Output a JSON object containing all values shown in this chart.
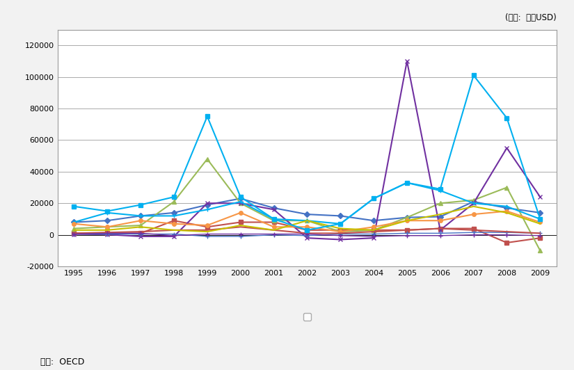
{
  "years": [
    1995,
    1996,
    1997,
    1998,
    1999,
    2000,
    2001,
    2002,
    2003,
    2004,
    2005,
    2006,
    2007,
    2008,
    2009
  ],
  "series": {
    "_FRA": {
      "values": [
        8000,
        9000,
        12000,
        14000,
        19000,
        23000,
        17000,
        13000,
        12000,
        9000,
        11000,
        11500,
        21000,
        17000,
        14000
      ],
      "color": "#4472C4",
      "marker": "D",
      "markersize": 4,
      "linewidth": 1.5,
      "linestyle": "-"
    },
    "_FIN": {
      "values": [
        1000,
        1000,
        1000,
        9000,
        5000,
        8000,
        8000,
        3000,
        3000,
        3000,
        3000,
        4000,
        4000,
        -5000,
        -2000
      ],
      "color": "#C0504D",
      "marker": "s",
      "markersize": 4,
      "linewidth": 1.5,
      "linestyle": "-"
    },
    "_GER": {
      "values": [
        4000,
        5000,
        6000,
        21000,
        48000,
        20000,
        9000,
        9000,
        2000,
        3000,
        11000,
        20000,
        22000,
        30000,
        -10000
      ],
      "color": "#9BBB59",
      "marker": "^",
      "markersize": 4,
      "linewidth": 1.5,
      "linestyle": "-"
    },
    "_NED": {
      "values": [
        500,
        200,
        -1000,
        -1000,
        20000,
        20000,
        16000,
        -2000,
        -3000,
        -2000,
        110000,
        3000,
        20000,
        55000,
        24000
      ],
      "color": "#7030A0",
      "marker": "x",
      "markersize": 5,
      "linewidth": 1.5,
      "linestyle": "-"
    },
    "_SPA": {
      "values": [
        8000,
        14000,
        12000,
        12000,
        16000,
        21000,
        10000,
        9000,
        7000,
        23000,
        33000,
        28000,
        20000,
        18000,
        10000
      ],
      "color": "#00B0F0",
      "marker": "+",
      "markersize": 5,
      "linewidth": 1.5,
      "linestyle": "-"
    },
    "_SWE": {
      "values": [
        7000,
        5000,
        9000,
        7000,
        6000,
        14000,
        5000,
        5000,
        2000,
        5000,
        9000,
        9000,
        13000,
        15000,
        8000
      ],
      "color": "#F79646",
      "marker": "o",
      "markersize": 4,
      "linewidth": 1.5,
      "linestyle": "-"
    },
    "_AUS": {
      "values": [
        500,
        500,
        500,
        500,
        -1000,
        -1000,
        0,
        -500,
        500,
        500,
        1000,
        1000,
        1500,
        1500,
        1000
      ],
      "color": "#4472C4",
      "marker": "+",
      "markersize": 5,
      "linewidth": 1.0,
      "linestyle": "-"
    },
    "_DEN": {
      "values": [
        1000,
        1500,
        2000,
        3000,
        3000,
        5000,
        3000,
        1000,
        1000,
        2000,
        3000,
        4000,
        3000,
        2000,
        1000
      ],
      "color": "#C0504D",
      "marker": "None",
      "markersize": 0,
      "linewidth": 1.5,
      "linestyle": "-"
    },
    "_ITA": {
      "values": [
        3000,
        3000,
        5000,
        3000,
        2000,
        6000,
        3000,
        9000,
        4000,
        3000,
        9000,
        13000,
        18000,
        14000,
        7000
      ],
      "color": "#C6C000",
      "marker": "None",
      "markersize": 0,
      "linewidth": 1.5,
      "linestyle": "-"
    },
    "_FOR": {
      "values": [
        500,
        1000,
        1000,
        -500,
        500,
        500,
        500,
        500,
        -500,
        -1000,
        -500,
        -500,
        0,
        0,
        -500
      ],
      "color": "#7030A0",
      "marker": "+",
      "markersize": 5,
      "linewidth": 1.0,
      "linestyle": "-"
    },
    "_ENG": {
      "values": [
        18000,
        15000,
        19000,
        24000,
        75000,
        24000,
        10000,
        3000,
        7000,
        23000,
        33000,
        29000,
        101000,
        74000,
        10000
      ],
      "color": "#00B0F0",
      "marker": "s",
      "markersize": 4,
      "linewidth": 1.5,
      "linestyle": "-"
    }
  },
  "ylim": [
    -20000,
    130000
  ],
  "yticks": [
    -20000,
    0,
    20000,
    40000,
    60000,
    80000,
    100000,
    120000
  ],
  "unit_label": "(단위:  백만USD)",
  "source_label": "자료:  OECD",
  "bg_color": "#F2F2F2",
  "plot_bg_color": "#FFFFFF",
  "grid_color": "#AAAAAA",
  "border_color": "#999999"
}
